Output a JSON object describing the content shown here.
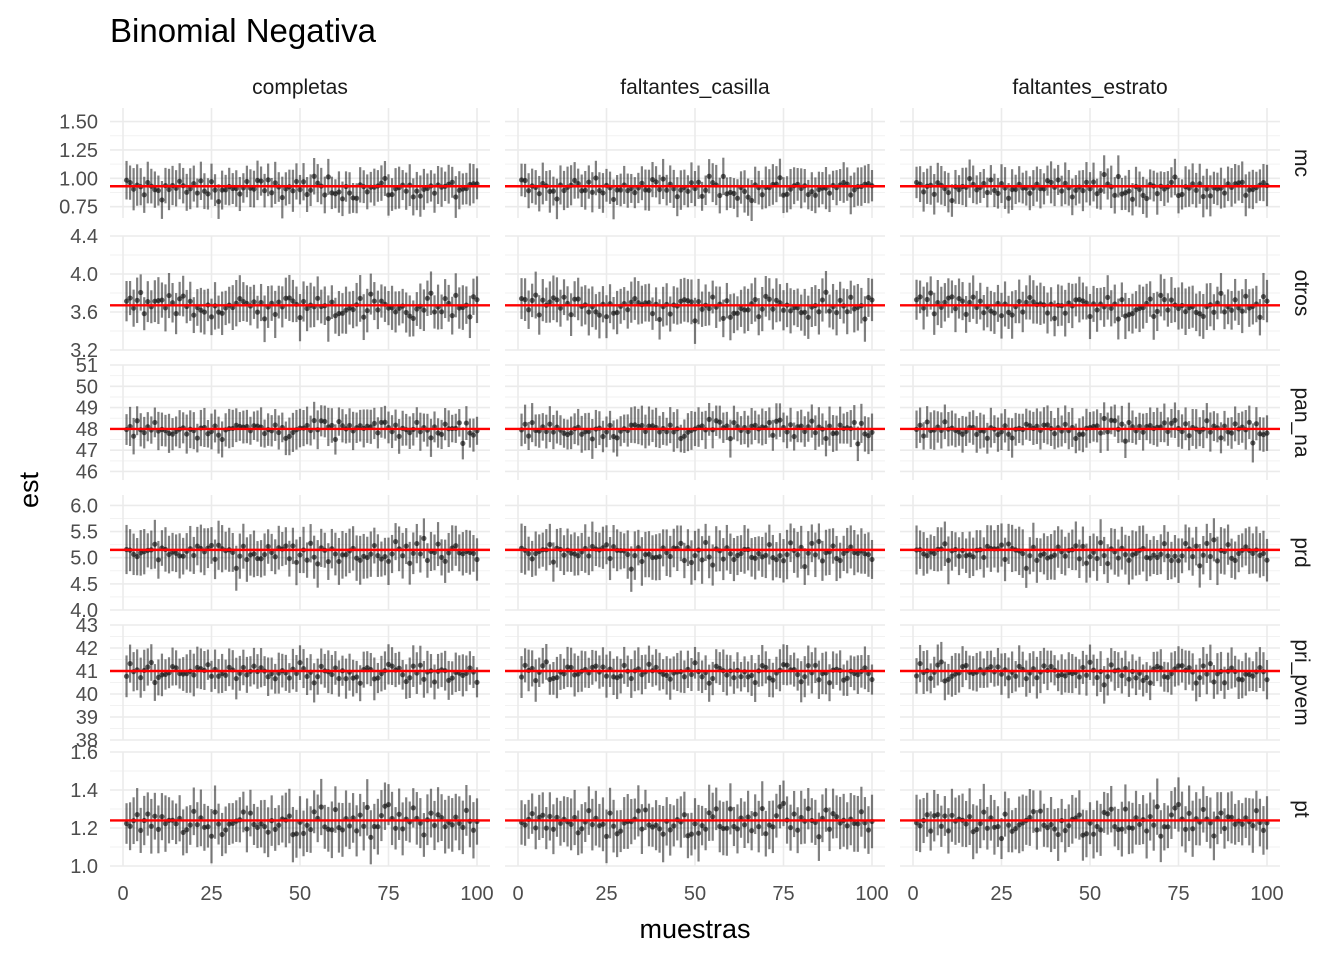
{
  "chart_data": {
    "type": "scatter",
    "title": "Binomial Negativa",
    "xlabel": "muestras",
    "ylabel": "est",
    "grid": true,
    "legend": "none",
    "colors": {
      "points": "#000000",
      "reference_line": "#ff0000",
      "grid": "#ebebeb"
    },
    "columns": [
      "completas",
      "faltantes_casilla",
      "faltantes_estrato"
    ],
    "x": {
      "range": [
        0,
        100
      ],
      "ticks": [
        0,
        25,
        50,
        75,
        100
      ],
      "tick_labels": [
        "0",
        "25",
        "50",
        "75",
        "100"
      ]
    },
    "rows": [
      {
        "name": "mc",
        "ylim": [
          0.65,
          1.62
        ],
        "ticks": [
          0.75,
          1.0,
          1.25,
          1.5
        ],
        "tick_labels": [
          "0.75",
          "1.00",
          "1.25",
          "1.50"
        ],
        "reference": 0.93,
        "center": 0.91,
        "spread": 0.08,
        "halfwidth": 0.15
      },
      {
        "name": "otros",
        "ylim": [
          3.2,
          4.4
        ],
        "ticks": [
          3.2,
          3.6,
          4.0,
          4.4
        ],
        "tick_labels": [
          "3.2",
          "3.6",
          "4.0",
          "4.4"
        ],
        "reference": 3.67,
        "center": 3.66,
        "spread": 0.11,
        "halfwidth": 0.2
      },
      {
        "name": "pan_na",
        "ylim": [
          45.6,
          51.0
        ],
        "ticks": [
          46,
          47,
          48,
          49,
          50,
          51
        ],
        "tick_labels": [
          "46",
          "47",
          "48",
          "49",
          "50",
          "51"
        ],
        "reference": 48.0,
        "center": 48.0,
        "spread": 0.35,
        "halfwidth": 0.75
      },
      {
        "name": "prd",
        "ylim": [
          4.0,
          6.2
        ],
        "ticks": [
          4.0,
          4.5,
          5.0,
          5.5,
          6.0
        ],
        "tick_labels": [
          "4.0",
          "4.5",
          "5.0",
          "5.5",
          "6.0"
        ],
        "reference": 5.15,
        "center": 5.1,
        "spread": 0.17,
        "halfwidth": 0.38
      },
      {
        "name": "pri_pvem",
        "ylim": [
          38.0,
          43.0
        ],
        "ticks": [
          38,
          39,
          40,
          41,
          42,
          43
        ],
        "tick_labels": [
          "38",
          "39",
          "40",
          "41",
          "42",
          "43"
        ],
        "reference": 41.0,
        "center": 40.95,
        "spread": 0.4,
        "halfwidth": 0.75
      },
      {
        "name": "pt",
        "ylim": [
          1.0,
          1.6
        ],
        "ticks": [
          1.0,
          1.2,
          1.4,
          1.6
        ],
        "tick_labels": [
          "1.0",
          "1.2",
          "1.4",
          "1.6"
        ],
        "reference": 1.24,
        "center": 1.23,
        "spread": 0.06,
        "halfwidth": 0.12
      }
    ],
    "n_samples": 100
  }
}
